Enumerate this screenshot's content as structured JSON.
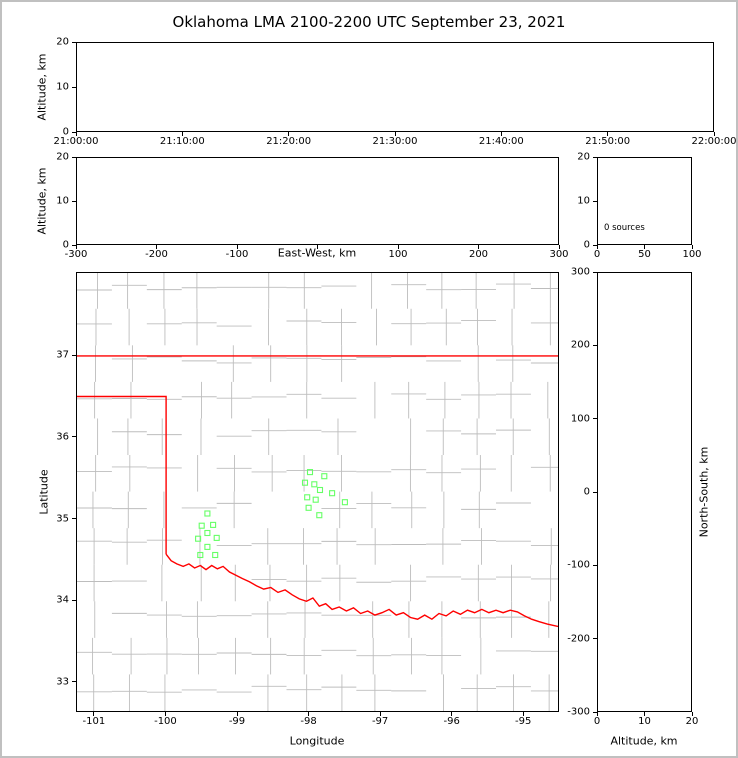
{
  "title": "Oklahoma LMA 2100-2200 UTC September 23, 2021",
  "colors": {
    "background": "#ffffff",
    "frame": "#c0c0c0",
    "axis": "#000000",
    "county_line": "#bdbdbd",
    "state_border": "#ff0000",
    "station": "#66ff66"
  },
  "chart_data": [
    {
      "name": "time_height_panel",
      "type": "scatter",
      "ylabel": "Altitude, km",
      "ylim": [
        0,
        20
      ],
      "yticks": [
        0,
        10,
        20
      ],
      "x_tick_labels": [
        "21:00:00",
        "21:10:00",
        "21:20:00",
        "21:30:00",
        "21:40:00",
        "21:50:00",
        "22:00:00"
      ],
      "points": []
    },
    {
      "name": "east_west_height_panel",
      "type": "scatter",
      "xlabel": "East-West, km",
      "ylabel": "Altitude, km",
      "xlim": [
        -300,
        300
      ],
      "xticks": [
        -300,
        -200,
        -100,
        0,
        100,
        200,
        300
      ],
      "xtick_hide": [
        0
      ],
      "ylim": [
        0,
        20
      ],
      "yticks": [
        0,
        10,
        20
      ],
      "points": []
    },
    {
      "name": "source_count_panel",
      "type": "scatter",
      "annotation": "0 sources",
      "xlim": [
        0,
        100
      ],
      "xticks": [
        0,
        50,
        100
      ],
      "ylim": [
        0,
        20
      ],
      "yticks": [
        0,
        10,
        20
      ],
      "points": []
    },
    {
      "name": "plan_view_map_panel",
      "type": "scatter",
      "xlabel": "Longitude",
      "ylabel": "Latitude",
      "xlim": [
        -101.25,
        -94.5
      ],
      "xticks": [
        -101,
        -100,
        -99,
        -98,
        -97,
        -96,
        -95
      ],
      "ylim": [
        32.63,
        38.02
      ],
      "yticks": [
        33,
        34,
        35,
        36,
        37
      ],
      "stations": [
        [
          -99.42,
          35.06
        ],
        [
          -99.5,
          34.91
        ],
        [
          -99.34,
          34.92
        ],
        [
          -99.42,
          34.82
        ],
        [
          -99.55,
          34.75
        ],
        [
          -99.29,
          34.76
        ],
        [
          -99.42,
          34.65
        ],
        [
          -99.52,
          34.55
        ],
        [
          -99.31,
          34.55
        ],
        [
          -97.98,
          35.57
        ],
        [
          -97.78,
          35.52
        ],
        [
          -98.05,
          35.44
        ],
        [
          -97.92,
          35.42
        ],
        [
          -97.84,
          35.35
        ],
        [
          -97.67,
          35.31
        ],
        [
          -98.02,
          35.26
        ],
        [
          -97.9,
          35.23
        ],
        [
          -97.49,
          35.2
        ],
        [
          -98.0,
          35.13
        ],
        [
          -97.85,
          35.04
        ]
      ],
      "state_border": [
        [
          [
            -101.25,
            37.0
          ],
          [
            -94.5,
            37.0
          ]
        ],
        [
          [
            -101.25,
            36.5
          ],
          [
            -100.0,
            36.5
          ],
          [
            -100.0,
            34.56
          ]
        ],
        [
          [
            -100.0,
            34.56
          ],
          [
            -99.93,
            34.48
          ],
          [
            -99.85,
            34.44
          ],
          [
            -99.76,
            34.41
          ],
          [
            -99.68,
            34.44
          ],
          [
            -99.6,
            34.39
          ],
          [
            -99.52,
            34.42
          ],
          [
            -99.44,
            34.37
          ],
          [
            -99.36,
            34.42
          ],
          [
            -99.28,
            34.38
          ],
          [
            -99.2,
            34.41
          ],
          [
            -99.11,
            34.34
          ],
          [
            -99.02,
            34.3
          ],
          [
            -98.93,
            34.26
          ],
          [
            -98.83,
            34.22
          ],
          [
            -98.73,
            34.17
          ],
          [
            -98.63,
            34.13
          ],
          [
            -98.53,
            34.15
          ],
          [
            -98.43,
            34.09
          ],
          [
            -98.33,
            34.12
          ],
          [
            -98.23,
            34.06
          ],
          [
            -98.13,
            34.01
          ],
          [
            -98.03,
            33.98
          ],
          [
            -97.94,
            34.02
          ],
          [
            -97.85,
            33.92
          ],
          [
            -97.76,
            33.95
          ],
          [
            -97.67,
            33.88
          ],
          [
            -97.57,
            33.91
          ],
          [
            -97.47,
            33.86
          ],
          [
            -97.37,
            33.9
          ],
          [
            -97.27,
            33.83
          ],
          [
            -97.17,
            33.86
          ],
          [
            -97.07,
            33.81
          ],
          [
            -96.97,
            33.84
          ],
          [
            -96.87,
            33.88
          ],
          [
            -96.77,
            33.81
          ],
          [
            -96.67,
            33.84
          ],
          [
            -96.57,
            33.78
          ],
          [
            -96.47,
            33.76
          ],
          [
            -96.37,
            33.81
          ],
          [
            -96.27,
            33.76
          ],
          [
            -96.17,
            33.83
          ],
          [
            -96.07,
            33.8
          ],
          [
            -95.97,
            33.86
          ],
          [
            -95.87,
            33.82
          ],
          [
            -95.77,
            33.87
          ],
          [
            -95.67,
            33.84
          ],
          [
            -95.57,
            33.88
          ],
          [
            -95.47,
            33.84
          ],
          [
            -95.37,
            33.87
          ],
          [
            -95.27,
            33.84
          ],
          [
            -95.17,
            33.87
          ],
          [
            -95.07,
            33.85
          ],
          [
            -94.97,
            33.8
          ],
          [
            -94.87,
            33.76
          ],
          [
            -94.77,
            33.73
          ],
          [
            -94.65,
            33.7
          ],
          [
            -94.5,
            33.67
          ]
        ]
      ],
      "county_grid": {
        "dlon": 0.49,
        "dlat": 0.45,
        "jitter": 0.04,
        "skip": 0.22,
        "seed": 12345
      }
    },
    {
      "name": "north_south_height_panel",
      "type": "scatter",
      "xlabel": "Altitude, km",
      "ylabel": "North-South, km",
      "xlim": [
        0,
        20
      ],
      "xticks": [
        0,
        10,
        20
      ],
      "ylim": [
        -300,
        300
      ],
      "yticks": [
        -300,
        -200,
        -100,
        0,
        100,
        200,
        300
      ],
      "points": []
    }
  ]
}
